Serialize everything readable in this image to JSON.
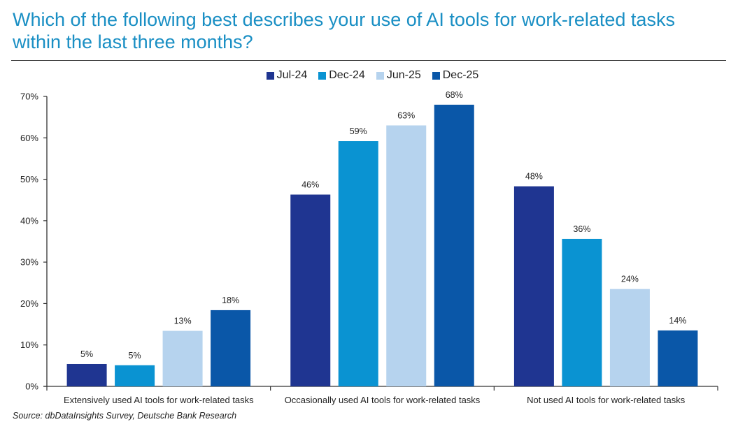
{
  "chart_data": {
    "type": "bar",
    "title": "Which of the following best describes your use of AI tools for work-related tasks within the last three months?",
    "categories": [
      "Extensively used AI tools for work-related tasks",
      "Occasionally used AI tools for work-related tasks",
      "Not used AI tools for work-related tasks"
    ],
    "series": [
      {
        "name": "Jul-24",
        "color": "#1f3591",
        "values": [
          5.4,
          46.3,
          48.3
        ],
        "labels": [
          "5%",
          "46%",
          "48%"
        ]
      },
      {
        "name": "Dec-24",
        "color": "#0a93d2",
        "values": [
          5.1,
          59.2,
          35.6
        ],
        "labels": [
          "5%",
          "59%",
          "36%"
        ]
      },
      {
        "name": "Jun-25",
        "color": "#b6d3ee",
        "values": [
          13.4,
          63.0,
          23.5
        ],
        "labels": [
          "13%",
          "63%",
          "24%"
        ]
      },
      {
        "name": "Dec-25",
        "color": "#0a57a8",
        "values": [
          18.4,
          68.0,
          13.5
        ],
        "labels": [
          "18%",
          "68%",
          "14%"
        ]
      }
    ],
    "yticks": [
      "0%",
      "10%",
      "20%",
      "30%",
      "40%",
      "50%",
      "60%",
      "70%"
    ],
    "ylim": [
      0,
      70
    ],
    "xlabel": "",
    "ylabel": "",
    "legend": "top-center",
    "grid": false,
    "source": "Source: dbDataInsights Survey, Deutsche Bank Research"
  }
}
